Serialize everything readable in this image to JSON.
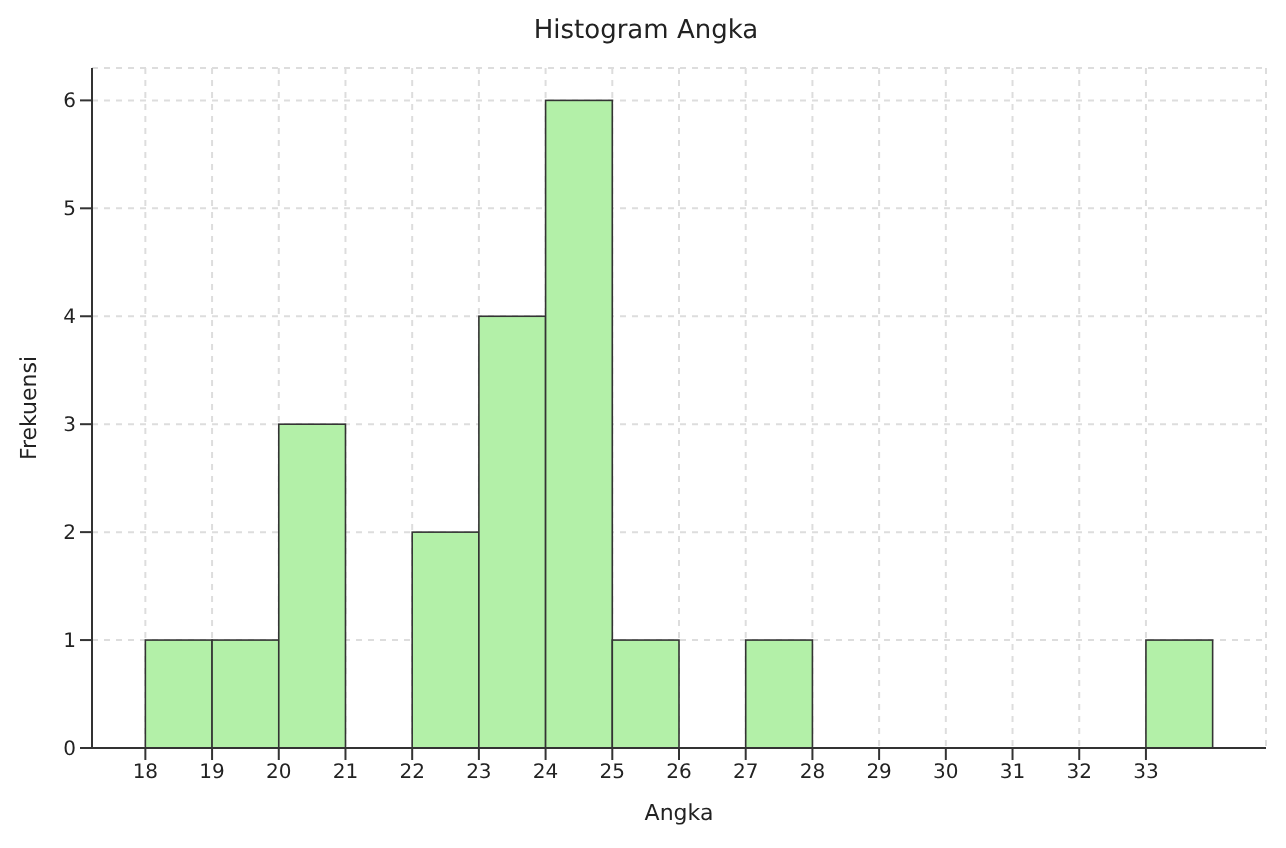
{
  "chart_data": {
    "type": "histogram",
    "title": "Histogram Angka",
    "xlabel": "Angka",
    "ylabel": "Frekuensi",
    "bins": [
      18,
      19,
      20,
      21,
      22,
      23,
      24,
      25,
      26,
      27,
      28,
      29,
      30,
      31,
      32,
      33,
      34
    ],
    "values": [
      1,
      1,
      3,
      0,
      2,
      4,
      6,
      1,
      0,
      1,
      0,
      0,
      0,
      0,
      0,
      1
    ],
    "color": "#b3f0a8",
    "xlim": [
      17.2,
      34.8
    ],
    "xticks": [
      18,
      19,
      20,
      21,
      22,
      23,
      24,
      25,
      26,
      27,
      28,
      29,
      30,
      31,
      32,
      33
    ],
    "ylim": [
      0,
      6.3
    ],
    "yticks": [
      0,
      1,
      2,
      3,
      4,
      5,
      6
    ],
    "grid": true
  }
}
